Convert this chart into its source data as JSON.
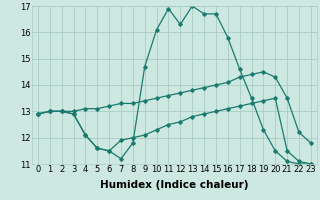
{
  "x": [
    0,
    1,
    2,
    3,
    4,
    5,
    6,
    7,
    8,
    9,
    10,
    11,
    12,
    13,
    14,
    15,
    16,
    17,
    18,
    19,
    20,
    21,
    22,
    23
  ],
  "line_top": [
    12.9,
    13.0,
    13.0,
    12.9,
    12.1,
    11.6,
    11.5,
    11.2,
    11.8,
    14.7,
    16.1,
    16.9,
    16.3,
    17.0,
    16.7,
    16.7,
    15.8,
    14.6,
    13.5,
    12.3,
    11.5,
    11.1,
    11.0,
    11.0
  ],
  "line_mid": [
    12.9,
    13.0,
    13.0,
    13.0,
    13.1,
    13.1,
    13.2,
    13.3,
    13.3,
    13.4,
    13.5,
    13.6,
    13.7,
    13.8,
    13.9,
    14.0,
    14.1,
    14.3,
    14.4,
    14.5,
    14.3,
    13.5,
    12.2,
    11.8
  ],
  "line_bot": [
    12.9,
    13.0,
    13.0,
    12.9,
    12.1,
    11.6,
    11.5,
    11.9,
    12.0,
    12.1,
    12.3,
    12.5,
    12.6,
    12.8,
    12.9,
    13.0,
    13.1,
    13.2,
    13.3,
    13.4,
    13.5,
    11.5,
    11.1,
    11.0
  ],
  "ylim": [
    11,
    17
  ],
  "xlim_min": -0.5,
  "xlim_max": 23.5,
  "yticks": [
    11,
    12,
    13,
    14,
    15,
    16,
    17
  ],
  "xticks": [
    0,
    1,
    2,
    3,
    4,
    5,
    6,
    7,
    8,
    9,
    10,
    11,
    12,
    13,
    14,
    15,
    16,
    17,
    18,
    19,
    20,
    21,
    22,
    23
  ],
  "line_color": "#1a7a6e",
  "bg_color": "#cce8e0",
  "grid_color": "#aaccc4",
  "xlabel": "Humidex (Indice chaleur)",
  "xlabel_fontsize": 7.5,
  "tick_fontsize": 6,
  "marker": "D",
  "marker_size": 1.8,
  "linewidth": 0.9
}
